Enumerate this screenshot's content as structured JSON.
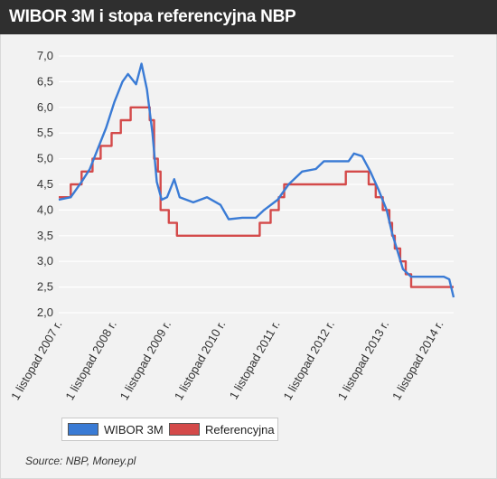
{
  "title": "WIBOR 3M i stopa referencyjna NBP",
  "source": "Source: NBP, Money.pl",
  "colors": {
    "wibor": "#3a7bd5",
    "ref": "#d44a4a",
    "header": "#2f2f2f"
  },
  "chart_data": {
    "type": "line",
    "title": "WIBOR 3M i stopa referencyjna NBP",
    "xlabel": "",
    "ylabel": "",
    "ylim": [
      2.0,
      7.0
    ],
    "xlim": [
      2007.83,
      2015.08
    ],
    "grid": true,
    "legend_position": "bottom-left",
    "y_ticks": [
      "7,0",
      "6,5",
      "6,0",
      "5,5",
      "5,0",
      "4,5",
      "4,0",
      "3,5",
      "3,0",
      "2,5",
      "2,0"
    ],
    "x_ticks": [
      {
        "x": 2007.83,
        "label": "1 listopad 2007 r."
      },
      {
        "x": 2008.83,
        "label": "1 listopad 2008 r."
      },
      {
        "x": 2009.83,
        "label": "1 listopad 2009 r."
      },
      {
        "x": 2010.83,
        "label": "1 listopad 2010 r."
      },
      {
        "x": 2011.83,
        "label": "1 listopad 2011 r."
      },
      {
        "x": 2012.83,
        "label": "1 listopad 2012 r."
      },
      {
        "x": 2013.83,
        "label": "1 listopad 2013 r."
      },
      {
        "x": 2014.83,
        "label": "1 listopad 2014 r."
      }
    ],
    "series": [
      {
        "name": "WIBOR 3M",
        "color": "#3a7bd5",
        "points": [
          [
            2007.83,
            4.2
          ],
          [
            2008.05,
            4.25
          ],
          [
            2008.25,
            4.55
          ],
          [
            2008.4,
            4.8
          ],
          [
            2008.55,
            5.2
          ],
          [
            2008.7,
            5.6
          ],
          [
            2008.85,
            6.1
          ],
          [
            2009.0,
            6.5
          ],
          [
            2009.1,
            6.65
          ],
          [
            2009.25,
            6.45
          ],
          [
            2009.35,
            6.85
          ],
          [
            2009.45,
            6.35
          ],
          [
            2009.55,
            5.5
          ],
          [
            2009.63,
            4.55
          ],
          [
            2009.72,
            4.2
          ],
          [
            2009.82,
            4.25
          ],
          [
            2009.95,
            4.6
          ],
          [
            2010.05,
            4.25
          ],
          [
            2010.3,
            4.15
          ],
          [
            2010.55,
            4.25
          ],
          [
            2010.8,
            4.1
          ],
          [
            2010.95,
            3.82
          ],
          [
            2011.2,
            3.85
          ],
          [
            2011.45,
            3.85
          ],
          [
            2011.6,
            4.0
          ],
          [
            2011.85,
            4.2
          ],
          [
            2012.05,
            4.5
          ],
          [
            2012.3,
            4.75
          ],
          [
            2012.55,
            4.8
          ],
          [
            2012.7,
            4.95
          ],
          [
            2012.95,
            4.95
          ],
          [
            2013.15,
            4.95
          ],
          [
            2013.25,
            5.1
          ],
          [
            2013.4,
            5.05
          ],
          [
            2013.55,
            4.75
          ],
          [
            2013.7,
            4.4
          ],
          [
            2013.85,
            4.0
          ],
          [
            2013.95,
            3.55
          ],
          [
            2014.05,
            3.2
          ],
          [
            2014.15,
            2.85
          ],
          [
            2014.3,
            2.7
          ],
          [
            2014.5,
            2.7
          ],
          [
            2014.7,
            2.7
          ],
          [
            2014.9,
            2.7
          ],
          [
            2015.0,
            2.65
          ],
          [
            2015.08,
            2.3
          ]
        ]
      },
      {
        "name": "Referencyjna",
        "color": "#d44a4a",
        "points": [
          [
            2007.83,
            4.25
          ],
          [
            2008.05,
            4.25
          ],
          [
            2008.05,
            4.5
          ],
          [
            2008.25,
            4.5
          ],
          [
            2008.25,
            4.75
          ],
          [
            2008.45,
            4.75
          ],
          [
            2008.45,
            5.0
          ],
          [
            2008.6,
            5.0
          ],
          [
            2008.6,
            5.25
          ],
          [
            2008.8,
            5.25
          ],
          [
            2008.8,
            5.5
          ],
          [
            2008.97,
            5.5
          ],
          [
            2008.97,
            5.75
          ],
          [
            2009.15,
            5.75
          ],
          [
            2009.15,
            6.0
          ],
          [
            2009.5,
            6.0
          ],
          [
            2009.5,
            5.75
          ],
          [
            2009.58,
            5.75
          ],
          [
            2009.58,
            5.0
          ],
          [
            2009.65,
            5.0
          ],
          [
            2009.65,
            4.75
          ],
          [
            2009.7,
            4.75
          ],
          [
            2009.7,
            4.0
          ],
          [
            2009.85,
            4.0
          ],
          [
            2009.85,
            3.75
          ],
          [
            2010.0,
            3.75
          ],
          [
            2010.0,
            3.5
          ],
          [
            2011.52,
            3.5
          ],
          [
            2011.52,
            3.75
          ],
          [
            2011.72,
            3.75
          ],
          [
            2011.72,
            4.0
          ],
          [
            2011.87,
            4.0
          ],
          [
            2011.87,
            4.25
          ],
          [
            2011.97,
            4.25
          ],
          [
            2011.97,
            4.5
          ],
          [
            2013.1,
            4.5
          ],
          [
            2013.1,
            4.75
          ],
          [
            2013.52,
            4.75
          ],
          [
            2013.52,
            4.5
          ],
          [
            2013.65,
            4.5
          ],
          [
            2013.65,
            4.25
          ],
          [
            2013.78,
            4.25
          ],
          [
            2013.78,
            4.0
          ],
          [
            2013.9,
            4.0
          ],
          [
            2013.9,
            3.75
          ],
          [
            2013.95,
            3.75
          ],
          [
            2013.95,
            3.5
          ],
          [
            2014.0,
            3.5
          ],
          [
            2014.0,
            3.25
          ],
          [
            2014.1,
            3.25
          ],
          [
            2014.1,
            3.0
          ],
          [
            2014.2,
            3.0
          ],
          [
            2014.2,
            2.75
          ],
          [
            2014.3,
            2.75
          ],
          [
            2014.3,
            2.5
          ],
          [
            2015.08,
            2.5
          ]
        ]
      }
    ]
  }
}
